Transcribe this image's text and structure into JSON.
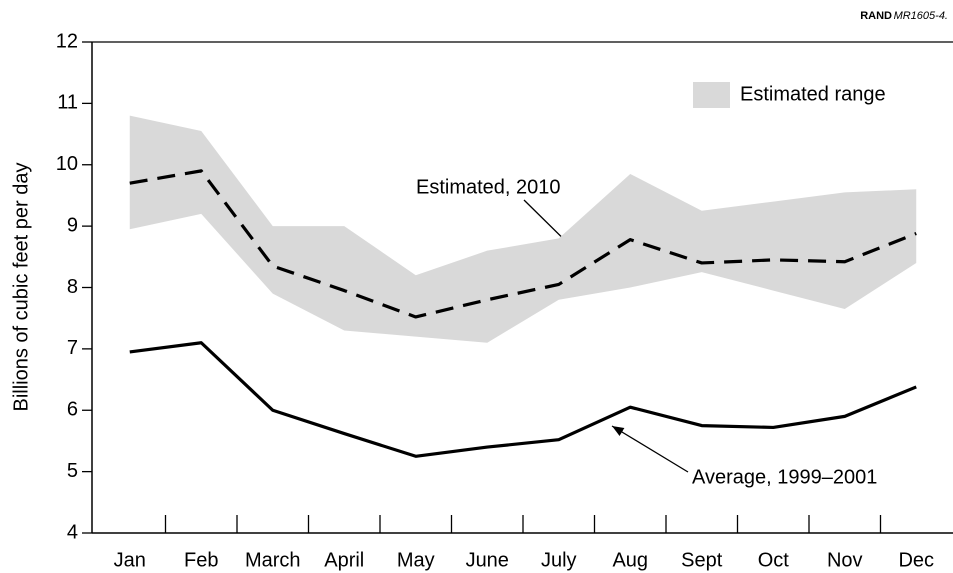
{
  "chart_data": {
    "type": "line",
    "source": {
      "org": "RAND",
      "id": "MR1605-4."
    },
    "y_label": "Billions of cubic feet per day",
    "categories": [
      "Jan",
      "Feb",
      "March",
      "April",
      "May",
      "June",
      "July",
      "Aug",
      "Sept",
      "Oct",
      "Nov",
      "Dec"
    ],
    "range": {
      "name": "Estimated range",
      "color": "#d9d9d9",
      "high": [
        10.8,
        10.55,
        9.0,
        9.0,
        8.2,
        8.6,
        8.8,
        9.85,
        9.25,
        9.4,
        9.55,
        9.6
      ],
      "low": [
        8.95,
        9.2,
        7.9,
        7.3,
        7.2,
        7.1,
        7.8,
        8.0,
        8.25,
        7.95,
        7.65,
        8.4
      ]
    },
    "series": [
      {
        "name": "Estimated, 2010",
        "color": "#000000",
        "dash": true,
        "values": [
          9.7,
          9.9,
          8.35,
          7.95,
          7.52,
          7.8,
          8.05,
          8.78,
          8.4,
          8.45,
          8.42,
          8.88
        ]
      },
      {
        "name": "Average, 1999–2001",
        "color": "#000000",
        "dash": false,
        "values": [
          6.95,
          7.1,
          6.0,
          5.62,
          5.25,
          5.4,
          5.52,
          6.05,
          5.75,
          5.72,
          5.9,
          6.38
        ]
      }
    ],
    "ylim": [
      4,
      12
    ],
    "yticks": [
      4,
      5,
      6,
      7,
      8,
      9,
      10,
      11,
      12
    ],
    "grid": false
  }
}
